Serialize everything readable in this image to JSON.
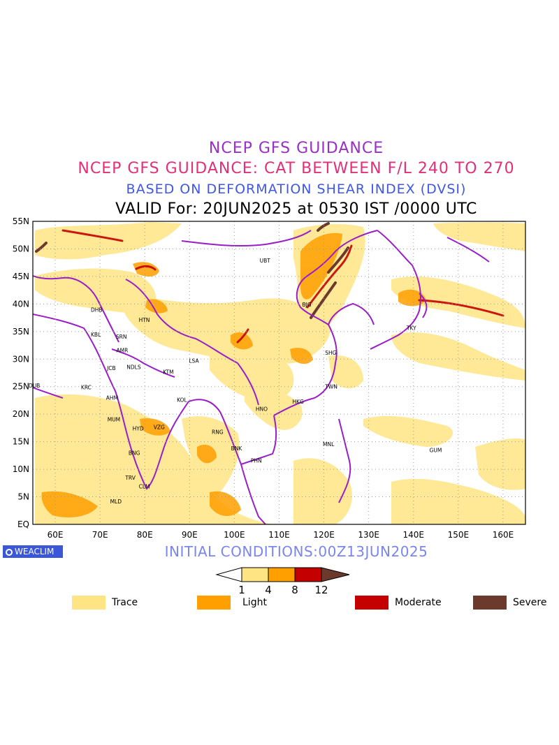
{
  "titles": {
    "line1": "NCEP GFS GUIDANCE",
    "line2": "NCEP GFS GUIDANCE: CAT BETWEEN F/L 240 TO 270",
    "line3": "BASED ON DEFORMATION SHEAR INDEX (DVSI)",
    "line4": "VALID For: 20JUN2025 at 0530 IST /0000 UTC"
  },
  "brand": "WEACLIM",
  "initial_conditions": "INITIAL CONDITIONS:00Z13JUN2025",
  "lat_labels": [
    "55N",
    "50N",
    "45N",
    "40N",
    "35N",
    "30N",
    "25N",
    "20N",
    "15N",
    "10N",
    "5N",
    "EQ"
  ],
  "lon_labels": [
    "60E",
    "70E",
    "80E",
    "90E",
    "100E",
    "110E",
    "120E",
    "130E",
    "140E",
    "150E",
    "160E"
  ],
  "colorbar": {
    "ticks": [
      "1",
      "4",
      "8",
      "12"
    ],
    "colors": {
      "trace": "#ffe484",
      "light": "#ff9f00",
      "moderate": "#c40000",
      "severe": "#6b3a2c"
    }
  },
  "legend": [
    {
      "label": "Trace",
      "color": "#ffe484"
    },
    {
      "label": "Light",
      "color": "#ff9f00"
    },
    {
      "label": "Moderate",
      "color": "#c40000"
    },
    {
      "label": "Severe",
      "color": "#6b3a2c"
    }
  ],
  "stations": [
    {
      "code": "UBT",
      "lon": 106.9,
      "lat": 47.9
    },
    {
      "code": "BJG",
      "lon": 116.4,
      "lat": 39.9
    },
    {
      "code": "DHB",
      "lon": 69.2,
      "lat": 39.0
    },
    {
      "code": "HTN",
      "lon": 79.9,
      "lat": 37.1
    },
    {
      "code": "KBL",
      "lon": 69.2,
      "lat": 34.5
    },
    {
      "code": "SRN",
      "lon": 74.8,
      "lat": 34.1
    },
    {
      "code": "TKY",
      "lon": 139.7,
      "lat": 35.7
    },
    {
      "code": "SHG",
      "lon": 121.5,
      "lat": 31.2
    },
    {
      "code": "AMR",
      "lon": 74.9,
      "lat": 31.6
    },
    {
      "code": "LSA",
      "lon": 91.1,
      "lat": 29.7
    },
    {
      "code": "JCB",
      "lon": 72.8,
      "lat": 28.4
    },
    {
      "code": "NDLS",
      "lon": 77.2,
      "lat": 28.6
    },
    {
      "code": "KTM",
      "lon": 85.3,
      "lat": 27.7
    },
    {
      "code": "DUB",
      "lon": 55.3,
      "lat": 25.2
    },
    {
      "code": "KRC",
      "lon": 67.0,
      "lat": 24.9
    },
    {
      "code": "TWN",
      "lon": 121.5,
      "lat": 25.0
    },
    {
      "code": "AHM",
      "lon": 72.6,
      "lat": 23.0
    },
    {
      "code": "KOL",
      "lon": 88.4,
      "lat": 22.6
    },
    {
      "code": "HKG",
      "lon": 114.2,
      "lat": 22.3
    },
    {
      "code": "HNO",
      "lon": 106.0,
      "lat": 21.0
    },
    {
      "code": "MUM",
      "lon": 72.9,
      "lat": 19.1
    },
    {
      "code": "HYD",
      "lon": 78.5,
      "lat": 17.4
    },
    {
      "code": "VZG",
      "lon": 83.2,
      "lat": 17.7
    },
    {
      "code": "RNG",
      "lon": 96.2,
      "lat": 16.8
    },
    {
      "code": "GUM",
      "lon": 144.8,
      "lat": 13.5
    },
    {
      "code": "MNL",
      "lon": 121.0,
      "lat": 14.6
    },
    {
      "code": "BNK",
      "lon": 100.5,
      "lat": 13.8
    },
    {
      "code": "PHN",
      "lon": 104.9,
      "lat": 11.6
    },
    {
      "code": "BNG",
      "lon": 77.6,
      "lat": 13.0
    },
    {
      "code": "TRV",
      "lon": 76.9,
      "lat": 8.5
    },
    {
      "code": "CLM",
      "lon": 79.9,
      "lat": 6.9
    },
    {
      "code": "MLD",
      "lon": 73.5,
      "lat": 4.2
    }
  ],
  "map_extent": {
    "lon": [
      55,
      165
    ],
    "lat": [
      0,
      55
    ]
  }
}
